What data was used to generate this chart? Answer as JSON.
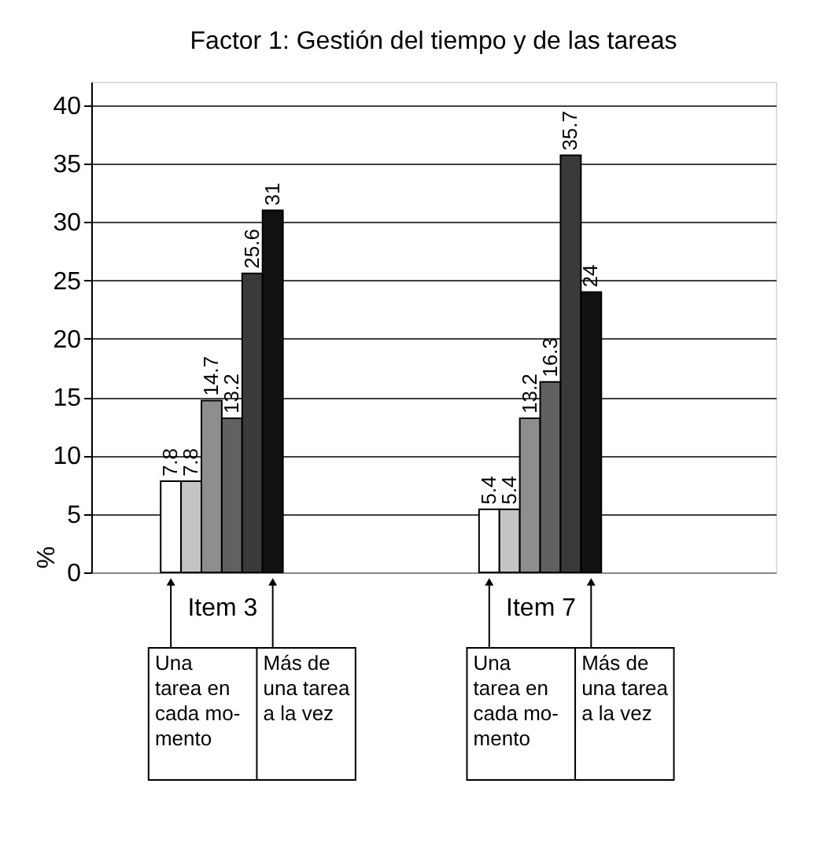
{
  "chart_data": {
    "type": "bar",
    "title": "Factor 1: Gestión del tiempo y de las tareas",
    "ylabel": "%",
    "categories": [
      "Item 3",
      "Item 7"
    ],
    "series": [
      {
        "color": "#ffffff",
        "values": [
          7.8,
          5.4
        ]
      },
      {
        "color": "#c4c4c4",
        "values": [
          7.8,
          5.4
        ]
      },
      {
        "color": "#8e8e8e",
        "values": [
          14.7,
          13.2
        ]
      },
      {
        "color": "#616161",
        "values": [
          13.2,
          16.3
        ]
      },
      {
        "color": "#3a3a3a",
        "values": [
          25.6,
          35.7
        ]
      },
      {
        "color": "#111111",
        "values": [
          31,
          24
        ]
      }
    ],
    "ylim": [
      0,
      42
    ],
    "yticks": [
      0,
      5,
      10,
      15,
      20,
      25,
      30,
      35,
      40
    ],
    "grid": "y",
    "data_labels": true,
    "legend": false,
    "annotations": [
      "Una\ntarea en\ncada mo-\nmento",
      "Más de\nuna tarea\na la vez",
      "Una\ntarea en\ncada mo-\nmento",
      "Más de\nuna tarea\na la vez"
    ]
  }
}
